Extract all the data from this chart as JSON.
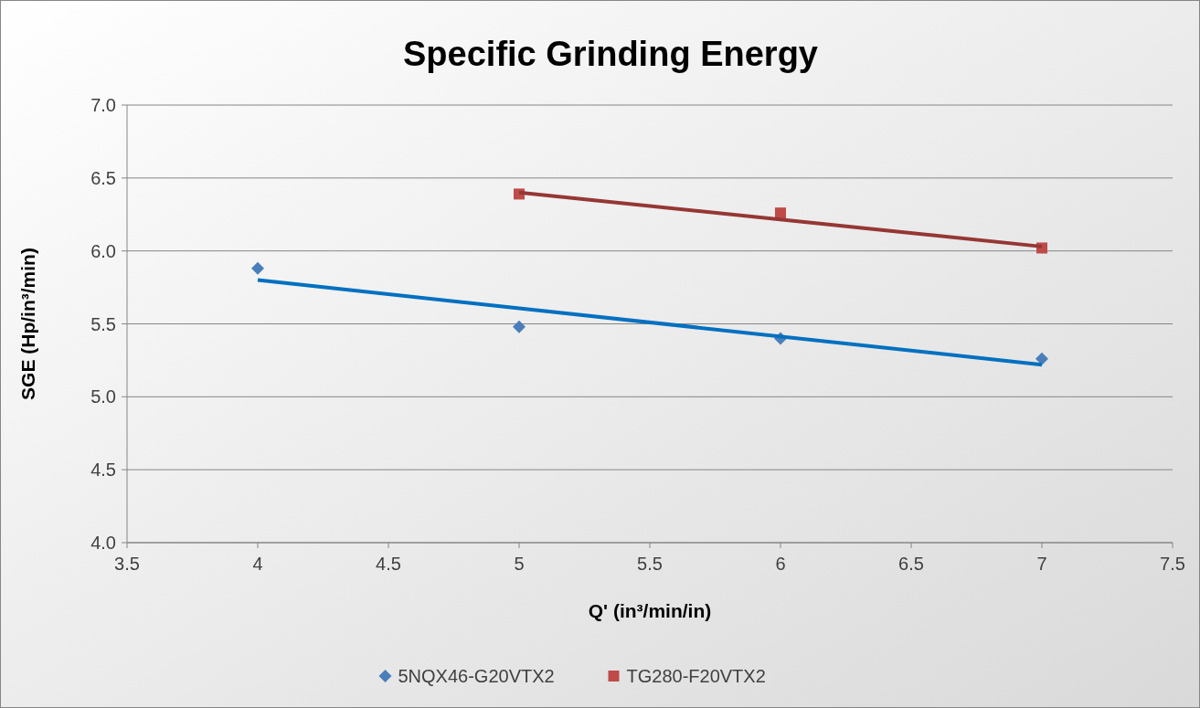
{
  "chart_data": {
    "type": "scatter",
    "title": "Specific Grinding Energy",
    "xlabel": "Q' (in³/min/in)",
    "ylabel": "SGE (Hp/in³/min)",
    "xlim": [
      3.5,
      7.5
    ],
    "xticks": [
      3.5,
      4,
      4.5,
      5,
      5.5,
      6,
      6.5,
      7,
      7.5
    ],
    "ylim": [
      4.0,
      7.0
    ],
    "yticks": [
      {
        "value": 4.0,
        "label": "4.0"
      },
      {
        "value": 4.5,
        "label": "4.5"
      },
      {
        "value": 5.0,
        "label": "5.0"
      },
      {
        "value": 5.5,
        "label": "5.5"
      },
      {
        "value": 6.0,
        "label": "6.0"
      },
      {
        "value": 6.5,
        "label": "6.5"
      },
      {
        "value": 7.0,
        "label": "7.0"
      }
    ],
    "grid": "y",
    "legend": "bottom",
    "series": [
      {
        "name": "5NQX46-G20VTX2",
        "color": "#4a7ebb",
        "marker": "diamond",
        "x": [
          4,
          5,
          6,
          7
        ],
        "values": [
          5.88,
          5.48,
          5.4,
          5.26
        ]
      },
      {
        "name": "TG280-F20VTX2",
        "color": "#be4b48",
        "marker": "square",
        "x": [
          5,
          6,
          7
        ],
        "values": [
          6.39,
          6.26,
          6.02
        ]
      },
      {
        "type": "line",
        "color": "#0070c0",
        "marker": "none",
        "line_style": "solid",
        "x": [
          4,
          7
        ],
        "values": [
          5.8,
          5.22
        ]
      },
      {
        "type": "line",
        "color": "#953735",
        "marker": "none",
        "line_style": "solid",
        "x": [
          5,
          7
        ],
        "values": [
          6.4,
          6.03
        ]
      }
    ]
  }
}
